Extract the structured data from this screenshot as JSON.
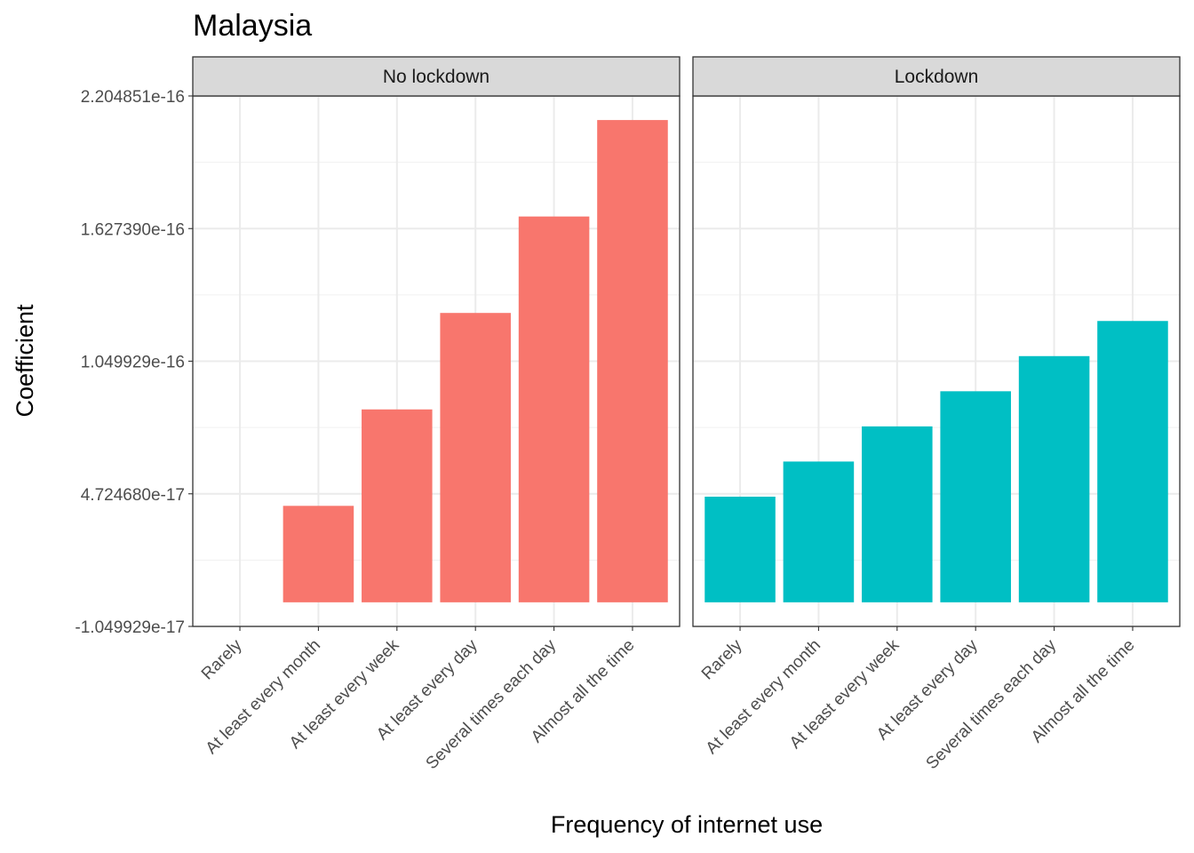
{
  "chart_data": {
    "type": "bar",
    "title": "Malaysia",
    "xlabel": "Frequency of internet use",
    "ylabel": "Coefficient",
    "yticks": [
      "-1.049929e-17",
      "4.724680e-17",
      "1.049929e-16",
      "1.627390e-16",
      "2.204851e-16"
    ],
    "ylim": [
      -1.049929e-17,
      2.204851e-16
    ],
    "categories": [
      "Rarely",
      "At least every month",
      "At least every week",
      "At least every day",
      "Several times each day",
      "Almost all the time"
    ],
    "grid": true,
    "legend": "none",
    "panels": [
      {
        "name": "No lockdown",
        "color": "#F8766D",
        "values": [
          0,
          4.2e-17,
          8.4e-17,
          1.26e-16,
          1.68e-16,
          2.1e-16
        ]
      },
      {
        "name": "Lockdown",
        "color": "#00BFC4",
        "values": [
          4.6e-17,
          6.13e-17,
          7.66e-17,
          9.19e-17,
          1.072e-16,
          1.225e-16
        ]
      }
    ]
  }
}
